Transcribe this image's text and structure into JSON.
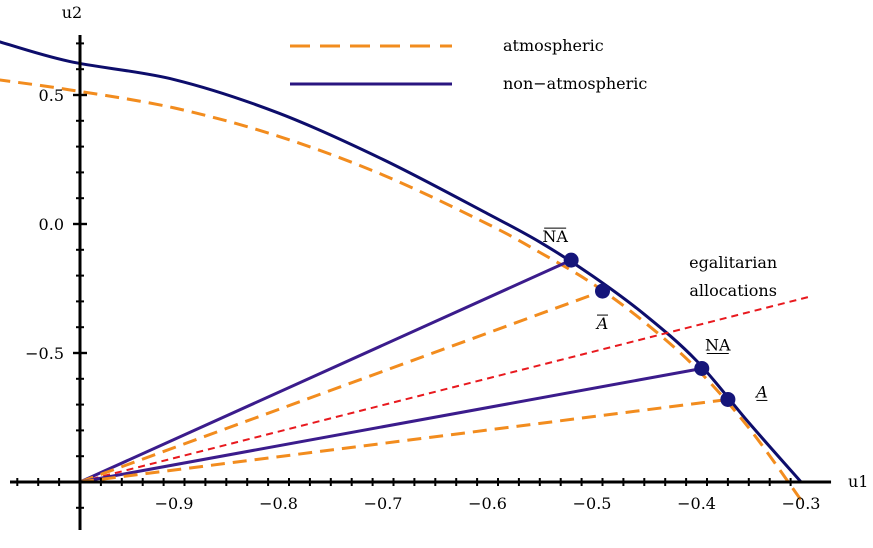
{
  "chart_data": {
    "type": "line",
    "title": "",
    "xlabel": "u1",
    "ylabel": "u2",
    "xlim": [
      -1.0,
      -0.3
    ],
    "ylim": [
      -1.0,
      0.75
    ],
    "x_ticks": [
      -0.9,
      -0.8,
      -0.7,
      -0.6,
      -0.5,
      -0.4,
      -0.3
    ],
    "x_tick_labels": [
      "−0.9",
      "−0.8",
      "−0.7",
      "−0.6",
      "−0.5",
      "−0.4",
      "−0.3"
    ],
    "y_ticks": [
      0.5,
      0.0,
      -0.5
    ],
    "y_tick_labels": [
      "0.5",
      "0.0",
      "−0.5"
    ],
    "legend": {
      "position": "top-center",
      "entries": [
        {
          "label": "atmospheric",
          "color": "#f28c1e",
          "style": "dashed"
        },
        {
          "label": "non−atmospheric",
          "color": "#2a1580",
          "style": "solid"
        }
      ]
    },
    "curves": [
      {
        "name": "atmospheric",
        "color": "#f28c1e",
        "style": "dashed",
        "points": [
          [
            -1.07,
            0.56
          ],
          [
            -1.0,
            0.52
          ],
          [
            -0.9,
            0.45
          ],
          [
            -0.8,
            0.34
          ],
          [
            -0.7,
            0.19
          ],
          [
            -0.6,
            0.0
          ],
          [
            -0.55,
            -0.11
          ],
          [
            -0.5,
            -0.23
          ],
          [
            -0.45,
            -0.38
          ],
          [
            -0.4,
            -0.56
          ],
          [
            -0.35,
            -0.79
          ],
          [
            -0.3,
            -1.07
          ]
        ]
      },
      {
        "name": "non−atmospheric",
        "color": "#0d0d6b",
        "style": "solid",
        "points": [
          [
            -1.07,
            0.71
          ],
          [
            -1.0,
            0.63
          ],
          [
            -0.9,
            0.56
          ],
          [
            -0.8,
            0.43
          ],
          [
            -0.7,
            0.25
          ],
          [
            -0.6,
            0.04
          ],
          [
            -0.55,
            -0.07
          ],
          [
            -0.5,
            -0.2
          ],
          [
            -0.45,
            -0.35
          ],
          [
            -0.4,
            -0.53
          ],
          [
            -0.35,
            -0.77
          ],
          [
            -0.3,
            -1.0
          ]
        ]
      }
    ],
    "rays": [
      {
        "to": [
          -0.52,
          -0.14
        ],
        "color": "#3b1c8c",
        "style": "solid"
      },
      {
        "to": [
          -0.49,
          -0.26
        ],
        "color": "#f28c1e",
        "style": "dashed"
      },
      {
        "to": [
          -0.395,
          -0.56
        ],
        "color": "#3b1c8c",
        "style": "solid"
      },
      {
        "to": [
          -0.37,
          -0.68
        ],
        "color": "#f28c1e",
        "style": "dashed"
      }
    ],
    "ray_origin": [
      -0.99,
      -1.0
    ],
    "egalitarian_line": {
      "from": [
        -0.99,
        -1.0
      ],
      "to": [
        -0.29,
        -0.28
      ],
      "color": "#e8191e",
      "style": "dashed"
    },
    "points": [
      {
        "label": "NA",
        "mark": "overline",
        "x": -0.52,
        "y": -0.14,
        "color": "#15157a"
      },
      {
        "label": "A",
        "mark": "overline",
        "x": -0.49,
        "y": -0.26,
        "color": "#15157a"
      },
      {
        "label": "NA",
        "mark": "underline",
        "x": -0.395,
        "y": -0.56,
        "color": "#15157a"
      },
      {
        "label": "A",
        "mark": "underline",
        "x": -0.37,
        "y": -0.68,
        "color": "#15157a"
      }
    ],
    "annotations": [
      {
        "text": "egalitarian",
        "x": -0.365,
        "y": -0.17
      },
      {
        "text": "allocations",
        "x": -0.365,
        "y": -0.28
      }
    ]
  }
}
